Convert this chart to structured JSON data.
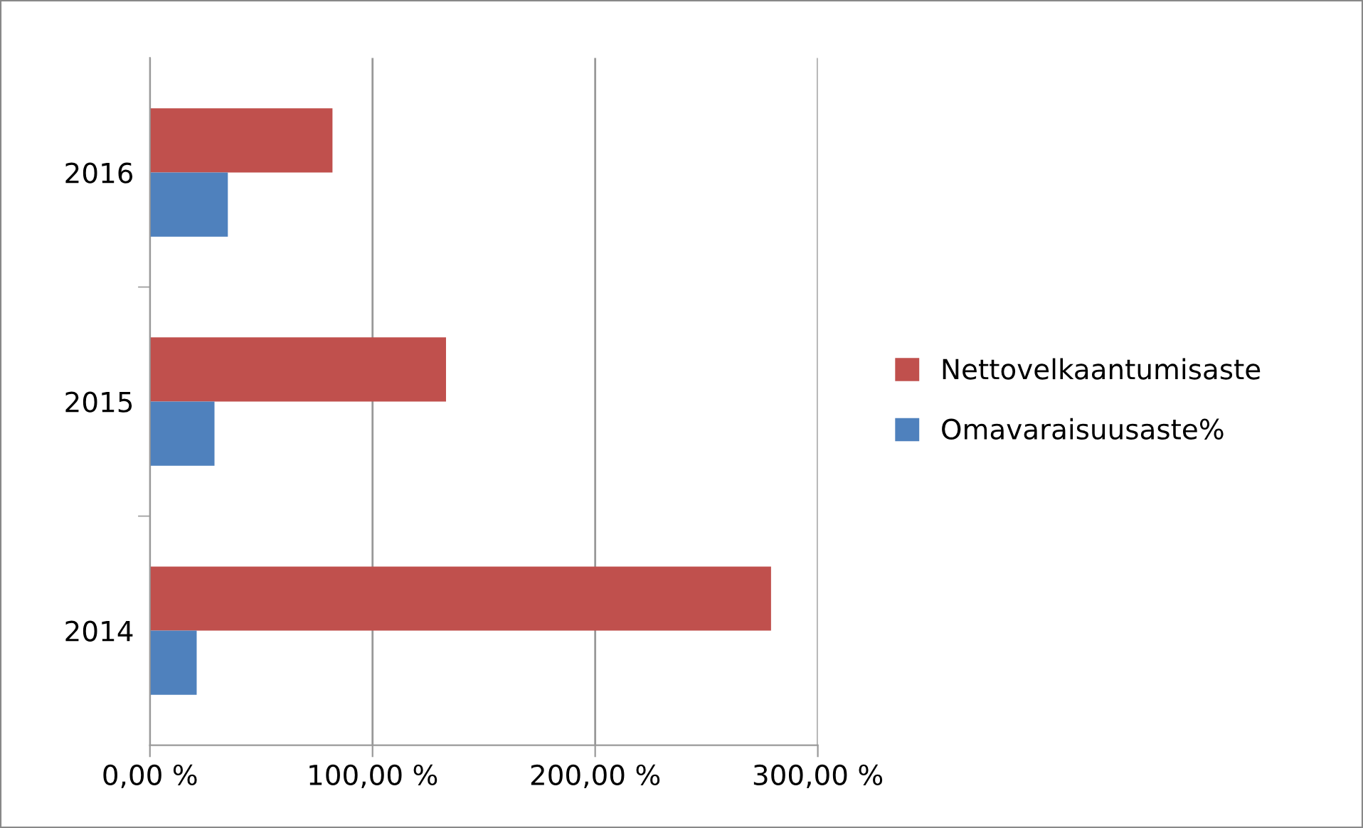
{
  "chart_data": {
    "type": "bar",
    "orientation": "horizontal",
    "categories": [
      "2016",
      "2015",
      "2014"
    ],
    "series": [
      {
        "name": "Nettovelkaantumisaste",
        "color": "#c0504d",
        "values": [
          82,
          133,
          279
        ]
      },
      {
        "name": "Omavaraisuusaste%",
        "color": "#4f81bd",
        "values": [
          35,
          29,
          21
        ]
      }
    ],
    "xlim": [
      0,
      300
    ],
    "xticks": [
      {
        "value": 0,
        "label": "0,00 %"
      },
      {
        "value": 100,
        "label": "100,00 %"
      },
      {
        "value": 200,
        "label": "200,00 %"
      },
      {
        "value": 300,
        "label": "300,00 %"
      }
    ],
    "grid": "x",
    "legend": "right"
  }
}
